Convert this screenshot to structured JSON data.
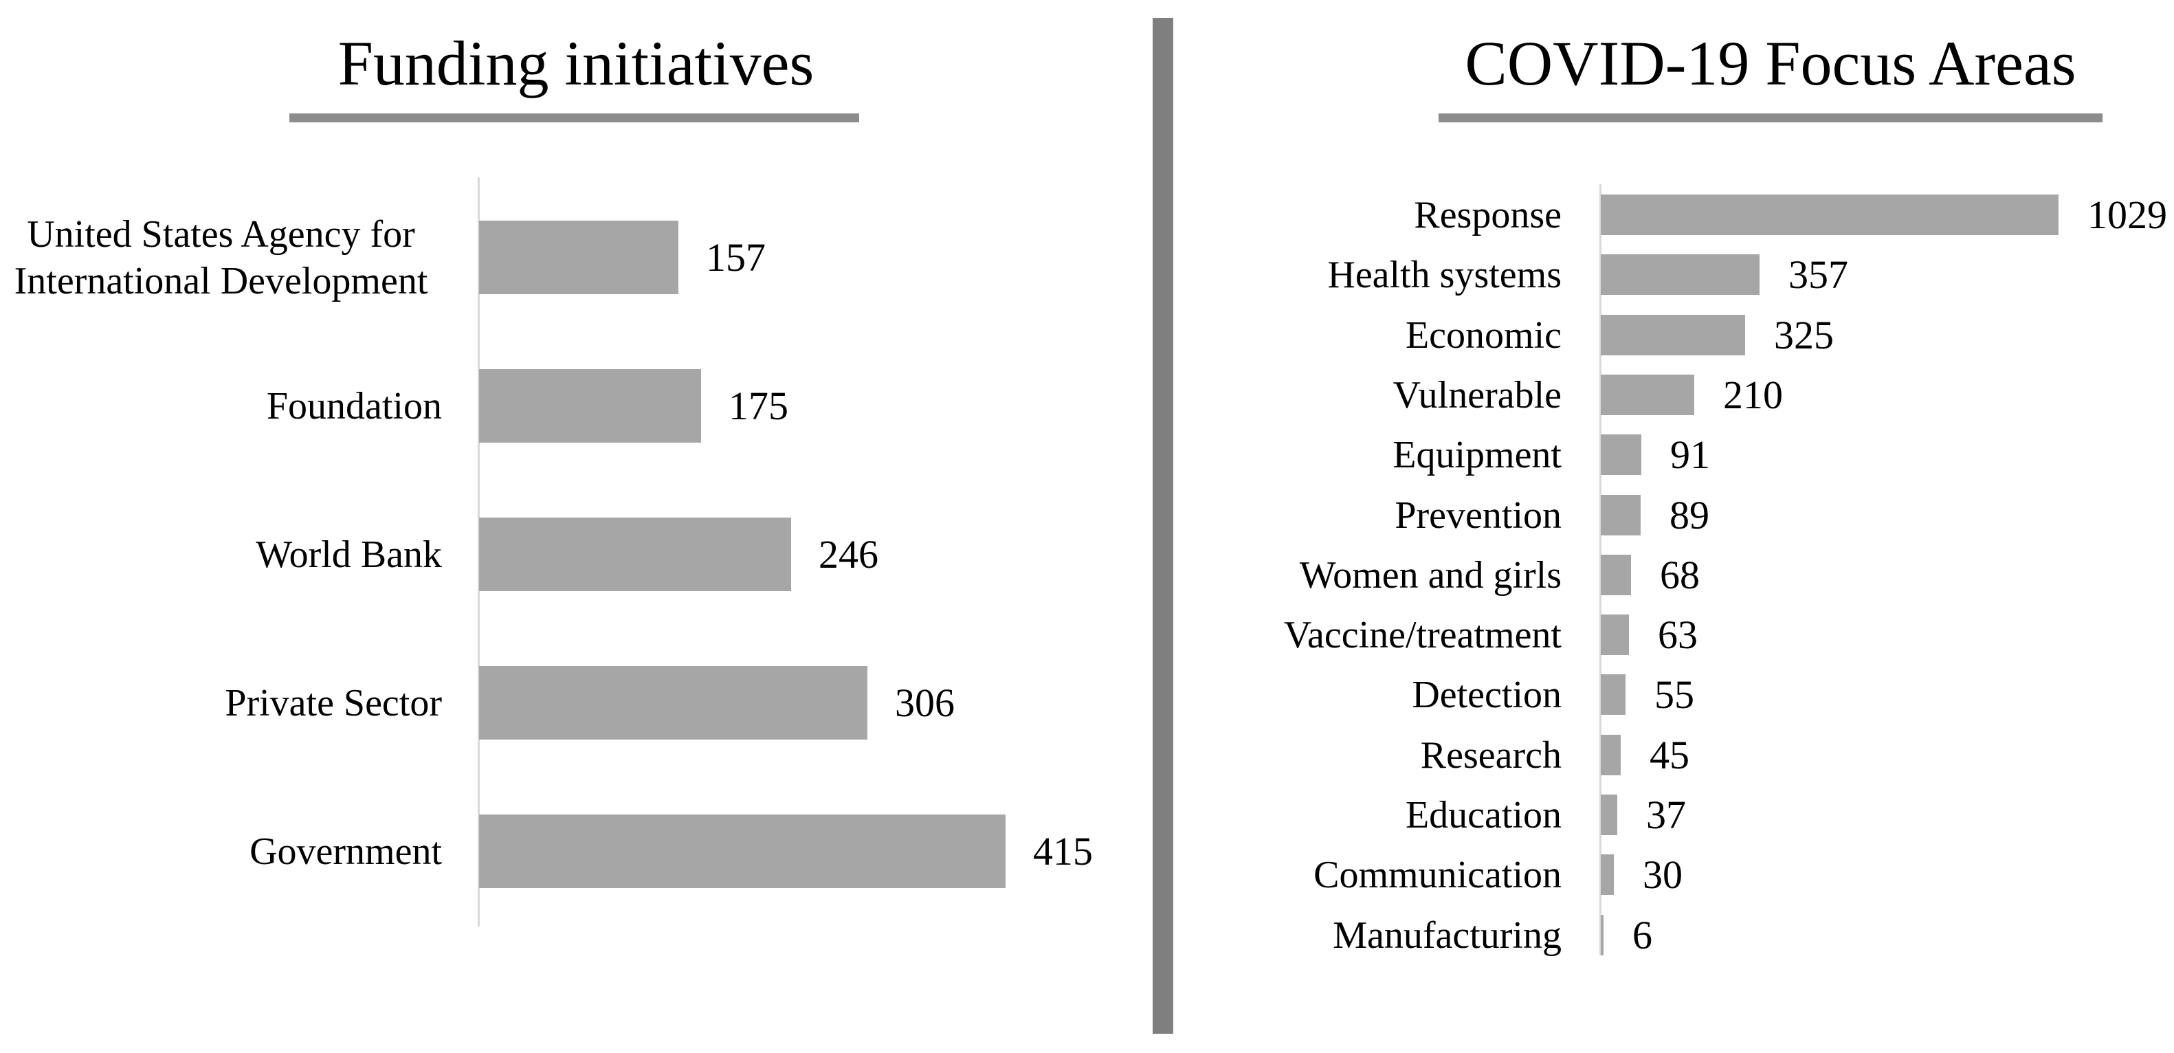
{
  "styles": {
    "background": "#ffffff",
    "bar_color": "#a6a6a6",
    "divider_color": "#7f7f7f",
    "underline_color": "#8c8c8c",
    "axis_line_color": "#d9d9d9",
    "text_color": "#000000"
  },
  "chart_data": [
    {
      "type": "bar",
      "orientation": "horizontal",
      "title": "Funding initiatives",
      "categories": [
        "United States Agency for\nInternational Development",
        "Foundation",
        "World Bank",
        "Private Sector",
        "Government"
      ],
      "values": [
        157,
        175,
        246,
        306,
        415
      ],
      "data_labels": true,
      "value_axis_visible": false,
      "gridlines": false,
      "legend": "none"
    },
    {
      "type": "bar",
      "orientation": "horizontal",
      "title": "COVID-19 Focus Areas",
      "categories": [
        "Response",
        "Health systems",
        "Economic",
        "Vulnerable",
        "Equipment",
        "Prevention",
        "Women and girls",
        "Vaccine/treatment",
        "Detection",
        "Research",
        "Education",
        "Communication",
        "Manufacturing"
      ],
      "values": [
        1029,
        357,
        325,
        210,
        91,
        89,
        68,
        63,
        55,
        45,
        37,
        30,
        6
      ],
      "data_labels": true,
      "value_axis_visible": false,
      "gridlines": false,
      "legend": "none"
    }
  ]
}
